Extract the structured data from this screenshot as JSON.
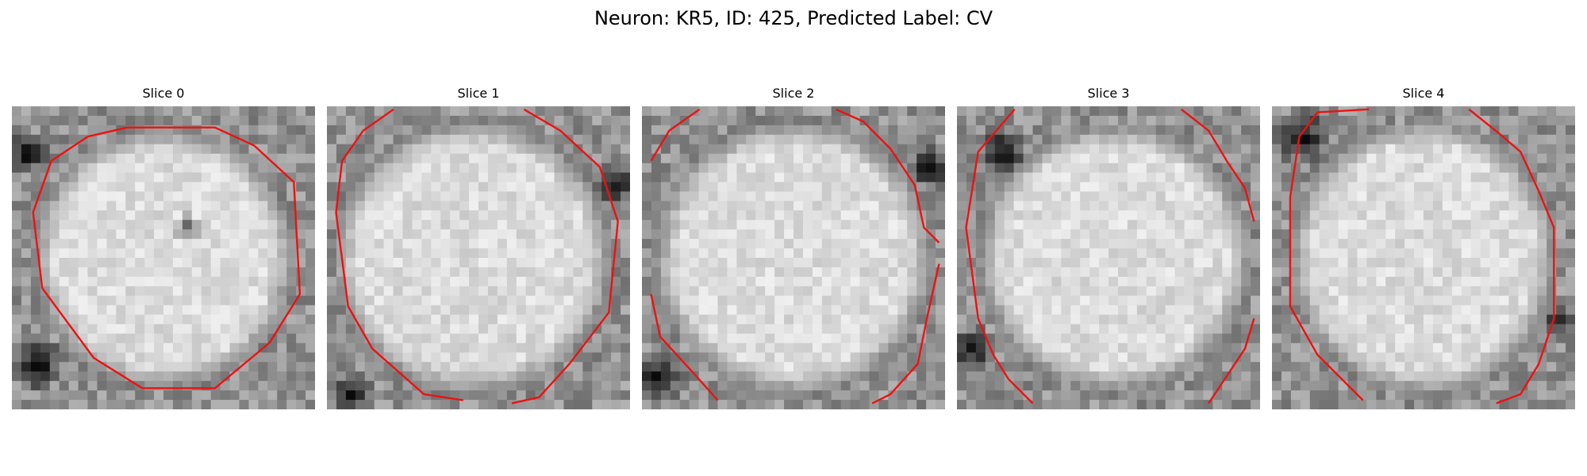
{
  "figure": {
    "title": "Neuron: KR5, ID: 425, Predicted Label: CV"
  },
  "slices": [
    {
      "label": "Slice 0"
    },
    {
      "label": "Slice 1"
    },
    {
      "label": "Slice 2"
    },
    {
      "label": "Slice 3"
    },
    {
      "label": "Slice 4"
    }
  ],
  "colors": {
    "contour": "#ee1111",
    "background": "#ffffff"
  }
}
